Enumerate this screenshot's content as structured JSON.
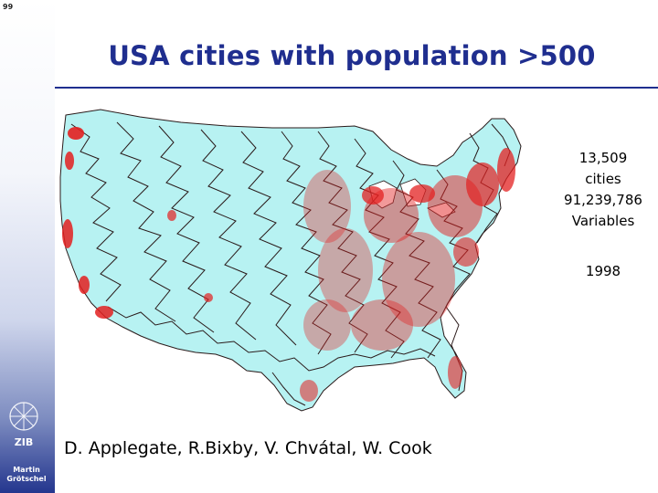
{
  "slide": {
    "page_number": "99",
    "title": "USA cities with population >500",
    "info": {
      "cities_count": "13,509",
      "cities_label": "cities",
      "variables_count": "91,239,786",
      "variables_label": "Variables",
      "year": "1998"
    },
    "authors": "D. Applegate, R.Bixby, V. Chvátal, W. Cook",
    "sidebar": {
      "logo_name": "zib-logo-icon",
      "author_name_line1": "Martin",
      "author_name_line2": "Grötschel"
    }
  },
  "colors": {
    "title": "#1f2e8f",
    "map_fill": "#b7f2f2",
    "tour_line": "#2a1a1a",
    "cities": "#e32020",
    "sidebar_dark": "#24368e"
  },
  "icons": {
    "map": "usa-map-icon",
    "logo": "zib-logo-icon"
  }
}
